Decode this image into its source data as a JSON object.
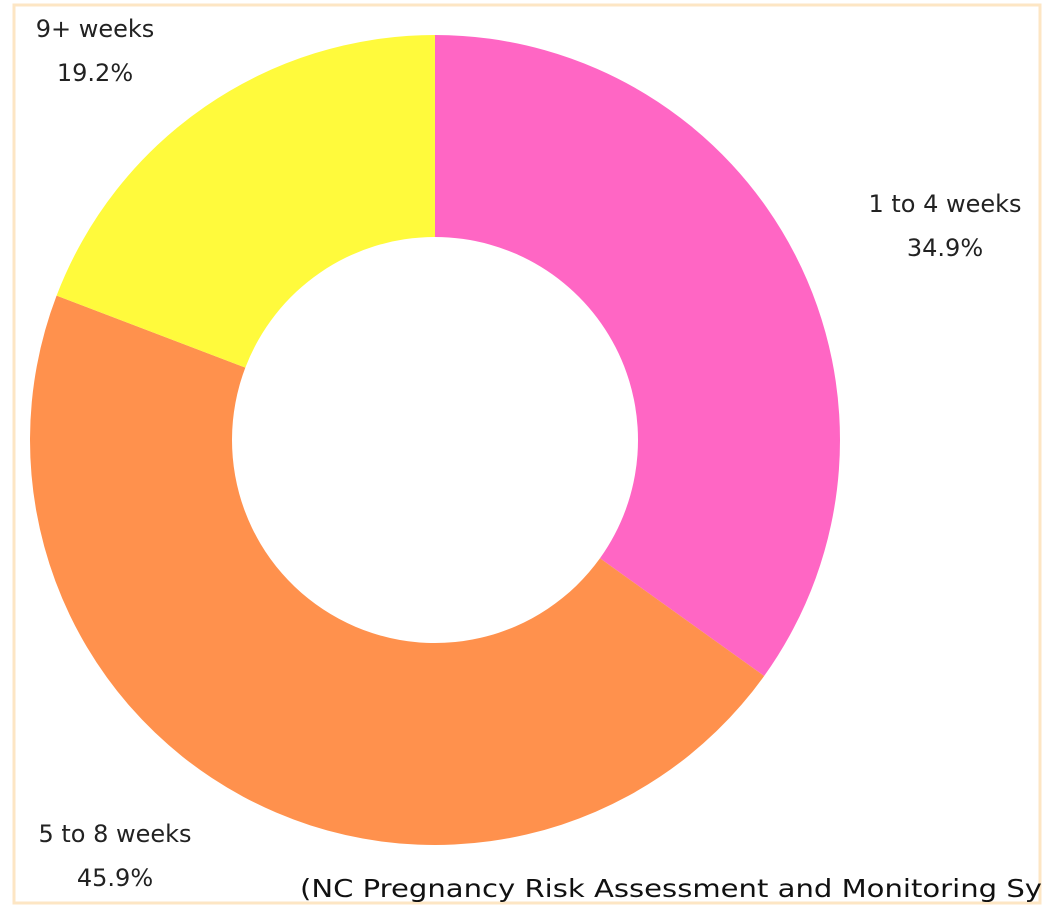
{
  "chart_data": {
    "type": "donut",
    "categories": [
      "1 to 4 weeks",
      "5 to 8 weeks",
      "9+ weeks"
    ],
    "values": [
      34.9,
      45.9,
      19.2
    ],
    "value_labels": [
      "34.9%",
      "45.9%",
      "19.2%"
    ],
    "colors": [
      "#ff66c4",
      "#ff914d",
      "#fffa3c"
    ],
    "caption": "(NC Pregnancy Risk Assessment and Monitoring Sy"
  }
}
